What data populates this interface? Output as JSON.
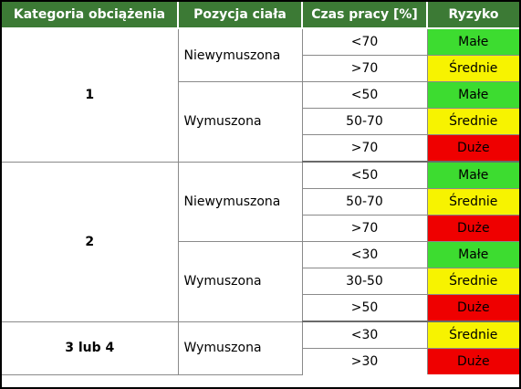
{
  "table": {
    "headers": [
      "Kategoria obciążenia",
      "Pozycja ciała",
      "Czas pracy [%]",
      "Ryzyko"
    ],
    "groups": [
      {
        "category": "1",
        "positions": [
          {
            "label": "Niewymuszona",
            "rows": [
              {
                "time": "<70",
                "risk": "Małe"
              },
              {
                "time": ">70",
                "risk": "Średnie"
              }
            ]
          },
          {
            "label": "Wymuszona",
            "rows": [
              {
                "time": "<50",
                "risk": "Małe"
              },
              {
                "time": "50-70",
                "risk": "Średnie"
              },
              {
                "time": ">70",
                "risk": "Duże"
              }
            ]
          }
        ]
      },
      {
        "category": "2",
        "positions": [
          {
            "label": "Niewymuszona",
            "rows": [
              {
                "time": "<50",
                "risk": "Małe"
              },
              {
                "time": "50-70",
                "risk": "Średnie"
              },
              {
                "time": ">70",
                "risk": "Duże"
              }
            ]
          },
          {
            "label": "Wymuszona",
            "rows": [
              {
                "time": "<30",
                "risk": "Małe"
              },
              {
                "time": "30-50",
                "risk": "Średnie"
              },
              {
                "time": ">50",
                "risk": "Duże"
              }
            ]
          }
        ]
      },
      {
        "category": "3 lub 4",
        "positions": [
          {
            "label": "Wymuszona",
            "rows": [
              {
                "time": "<30",
                "risk": "Średnie"
              },
              {
                "time": ">30",
                "risk": "Duże"
              }
            ]
          }
        ]
      }
    ]
  },
  "colors": {
    "header_bg": "#3c7a35",
    "risk_low": "#3ddc30",
    "risk_medium": "#f7f300",
    "risk_high": "#ef0000"
  }
}
